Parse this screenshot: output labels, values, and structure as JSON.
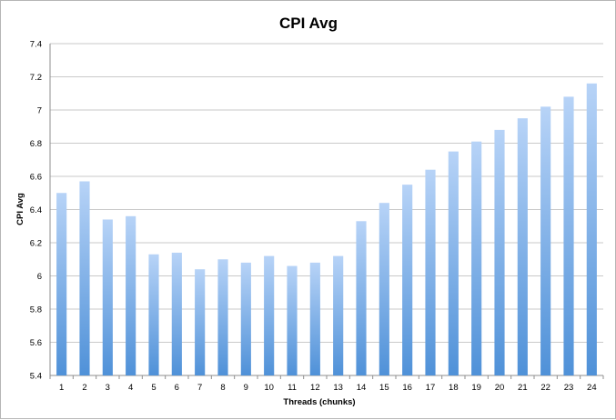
{
  "chart_data": {
    "type": "bar",
    "title": "CPI Avg",
    "xlabel": "Threads (chunks)",
    "ylabel": "CPI Avg",
    "ylim": [
      5.4,
      7.4
    ],
    "ytick_step": 0.2,
    "yticks": [
      "5.4",
      "5.6",
      "5.8",
      "6",
      "6.2",
      "6.4",
      "6.6",
      "6.8",
      "7",
      "7.2",
      "7.4"
    ],
    "grid": true,
    "legend": "none",
    "categories": [
      "1",
      "2",
      "3",
      "4",
      "5",
      "6",
      "7",
      "8",
      "9",
      "10",
      "11",
      "12",
      "13",
      "14",
      "15",
      "16",
      "17",
      "18",
      "19",
      "20",
      "21",
      "22",
      "23",
      "24"
    ],
    "series": [
      {
        "values": [
          6.5,
          6.57,
          6.34,
          6.36,
          6.13,
          6.14,
          6.04,
          6.1,
          6.08,
          6.12,
          6.06,
          6.08,
          6.12,
          6.33,
          6.44,
          6.55,
          6.64,
          6.75,
          6.81,
          6.88,
          6.95,
          7.02,
          7.08,
          7.16
        ]
      }
    ],
    "colors": {
      "bar_top": "#b7d3f7",
      "bar_bottom": "#4f91d8",
      "grid": "#c9c9c9",
      "axis": "#8f8f8f"
    }
  }
}
